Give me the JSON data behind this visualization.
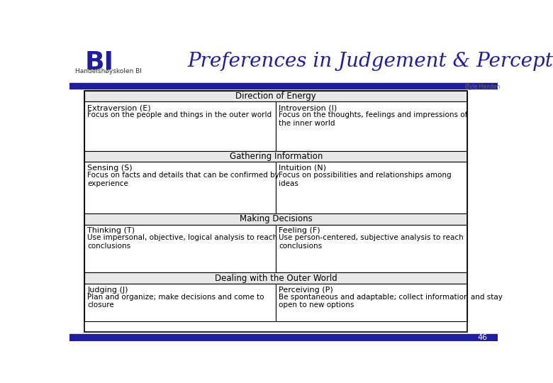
{
  "title": "Preferences in Judgement & Perception",
  "bg_color": "#ffffff",
  "attribution": "Øyle Henden",
  "page_number": "46",
  "blue_bar_color": "#1e1e9e",
  "table_border_color": "#000000",
  "header_gray": "#e8e8e8",
  "sections": [
    {
      "header": "Direction of Energy",
      "left_title": "Extraversion (E)",
      "left_body": "Focus on the people and things in the outer world",
      "right_title": "Introversion (I)",
      "right_body": "Focus on the thoughts, feelings and impressions of\nthe inner world"
    },
    {
      "header": "Gathering Information",
      "left_title": "Sensing (S)",
      "left_body": "Focus on facts and details that can be confirmed by\nexperience",
      "right_title": "Intuition (N)",
      "right_body": "Focus on possibilities and relationships among\nideas"
    },
    {
      "header": "Making Decisions",
      "left_title": "Thinking (T)",
      "left_body": "Use impersonal, objective, logical analysis to reach\nconclusions",
      "right_title": "Feeling (F)",
      "right_body": "Use person-centered, subjective analysis to reach\nconclusions"
    },
    {
      "header": "Dealing with the Outer World",
      "left_title": "Judging (J)",
      "left_body": "Plan and organize; make decisions and come to\nclosure",
      "right_title": "Perceiving (P)",
      "right_body": "Be spontaneous and adaptable; collect information and stay\nopen to new options"
    }
  ]
}
